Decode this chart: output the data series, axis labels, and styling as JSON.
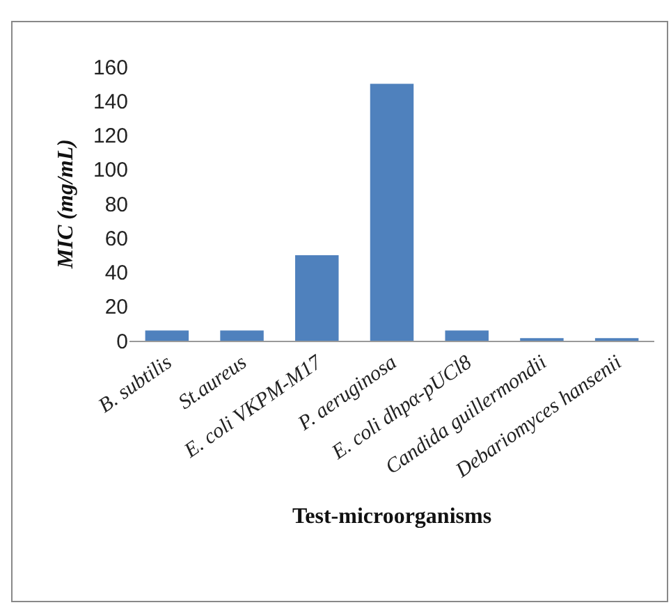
{
  "chart_data": {
    "type": "bar",
    "xlabel": "Test-microorganisms",
    "ylabel": "MIC (mg/mL)",
    "categories": [
      "B. subtilis",
      "St.aureus",
      "E. coli VKPM-M17",
      "P. aeruginosa",
      "E. coli dhpα-pUCl8",
      "Candida guillermondii",
      "Debariomyces hansenii"
    ],
    "values": [
      6,
      6,
      50,
      150,
      6,
      1.5,
      1.5
    ],
    "color": "#4f81bd",
    "ylim": [
      0,
      160
    ],
    "yticks": [
      0,
      20,
      40,
      60,
      80,
      100,
      120,
      140,
      160
    ],
    "grid": false,
    "legend": false
  }
}
